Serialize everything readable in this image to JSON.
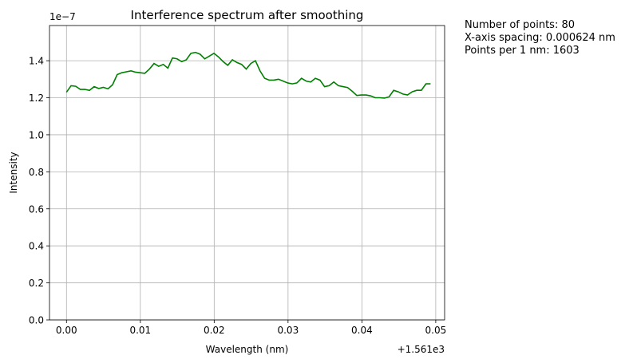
{
  "chart_data": {
    "type": "line",
    "title": "Interference spectrum after smoothing",
    "xlabel": "Wavelength (nm)",
    "ylabel": "Intensity",
    "x_offset_label": "+1.561e3",
    "y_scale_label": "1e−7",
    "xlim": [
      -0.0023,
      0.0512
    ],
    "ylim": [
      0.0,
      1.59
    ],
    "x_ticks": [
      0.0,
      0.01,
      0.02,
      0.03,
      0.04,
      0.05
    ],
    "x_tick_labels": [
      "0.00",
      "0.01",
      "0.02",
      "0.03",
      "0.04",
      "0.05"
    ],
    "y_ticks": [
      0.0,
      0.2,
      0.4,
      0.6,
      0.8,
      1.0,
      1.2,
      1.4
    ],
    "y_tick_labels": [
      "0.0",
      "0.2",
      "0.4",
      "0.6",
      "0.8",
      "1.0",
      "1.2",
      "1.4"
    ],
    "grid": true,
    "series": [
      {
        "color": "#008000",
        "x": [
          0.0,
          0.000624,
          0.001248,
          0.001872,
          0.002496,
          0.00312,
          0.003744,
          0.004368,
          0.004992,
          0.005616,
          0.00624,
          0.006864,
          0.007488,
          0.008112,
          0.008736,
          0.00936,
          0.009984,
          0.010608,
          0.011232,
          0.011856,
          0.01248,
          0.013104,
          0.013728,
          0.014352,
          0.014976,
          0.0156,
          0.016224,
          0.016848,
          0.017472,
          0.018096,
          0.01872,
          0.019344,
          0.019968,
          0.020592,
          0.021216,
          0.02184,
          0.022464,
          0.023088,
          0.023712,
          0.024336,
          0.02496,
          0.025584,
          0.026208,
          0.026832,
          0.027456,
          0.02808,
          0.028704,
          0.029328,
          0.029952,
          0.030576,
          0.0312,
          0.031824,
          0.032448,
          0.033072,
          0.033696,
          0.03432,
          0.034944,
          0.035568,
          0.036192,
          0.036816,
          0.03744,
          0.038064,
          0.038688,
          0.039312,
          0.039936,
          0.04056,
          0.041184,
          0.041808,
          0.042432,
          0.043056,
          0.04368,
          0.044304,
          0.044928,
          0.045552,
          0.046176,
          0.0468,
          0.047424,
          0.048048,
          0.048672,
          0.049296
        ],
        "y": [
          1.23,
          1.265,
          1.262,
          1.245,
          1.245,
          1.24,
          1.26,
          1.25,
          1.256,
          1.248,
          1.27,
          1.325,
          1.335,
          1.34,
          1.345,
          1.338,
          1.335,
          1.332,
          1.355,
          1.385,
          1.37,
          1.38,
          1.36,
          1.415,
          1.41,
          1.395,
          1.405,
          1.44,
          1.445,
          1.435,
          1.41,
          1.425,
          1.44,
          1.42,
          1.395,
          1.375,
          1.405,
          1.39,
          1.38,
          1.355,
          1.385,
          1.4,
          1.345,
          1.305,
          1.295,
          1.295,
          1.3,
          1.29,
          1.28,
          1.275,
          1.28,
          1.305,
          1.29,
          1.285,
          1.305,
          1.295,
          1.26,
          1.265,
          1.285,
          1.265,
          1.26,
          1.255,
          1.235,
          1.212,
          1.215,
          1.215,
          1.21,
          1.2,
          1.2,
          1.198,
          1.205,
          1.24,
          1.232,
          1.22,
          1.215,
          1.232,
          1.24,
          1.24,
          1.275,
          1.275
        ]
      }
    ]
  },
  "info": {
    "lines": [
      "Number of points: 80",
      "X-axis spacing: 0.000624 nm",
      "Points per 1 nm: 1603"
    ]
  }
}
